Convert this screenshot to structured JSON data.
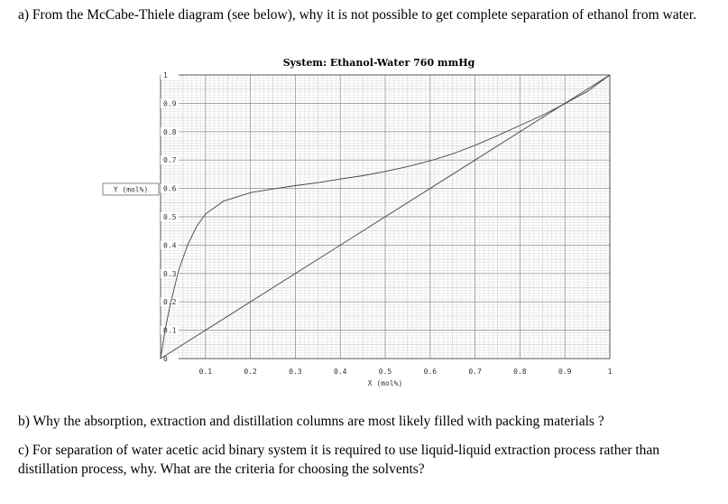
{
  "questions": {
    "a": "a) From the McCabe-Thiele diagram (see below), why it is not possible to get complete separation of ethanol from water.",
    "b": "b) Why the absorption, extraction and distillation columns are most likely filled with packing materials ?",
    "c": "c) For separation of water acetic acid binary system it is required to use liquid-liquid extraction process rather than distillation process, why.  What are the criteria for choosing the solvents?"
  },
  "chart_data": {
    "type": "line",
    "title": "System: Ethanol-Water 760 mmHg",
    "xlabel": "X (mol%)",
    "ylabel": "Y (mol%)",
    "xlim": [
      0,
      1
    ],
    "ylim": [
      0,
      1
    ],
    "grid": true,
    "x_ticks": [
      "0.1",
      "0.2",
      "0.3",
      "0.4",
      "0.5",
      "0.6",
      "0.7",
      "0.8",
      "0.9",
      "1"
    ],
    "y_ticks": [
      "0",
      "0.1",
      "0.2",
      "0.3",
      "0.4",
      "0.5",
      "0.6",
      "0.7",
      "0.8",
      "0.9",
      "1"
    ],
    "series": [
      {
        "x": [
          0,
          1
        ],
        "y": [
          0,
          1
        ]
      },
      {
        "x": [
          0,
          0.01,
          0.02,
          0.04,
          0.06,
          0.08,
          0.1,
          0.14,
          0.2,
          0.25,
          0.3,
          0.35,
          0.4,
          0.45,
          0.5,
          0.55,
          0.6,
          0.65,
          0.7,
          0.75,
          0.8,
          0.85,
          0.894,
          0.95,
          1
        ],
        "y": [
          0,
          0.1,
          0.18,
          0.31,
          0.4,
          0.465,
          0.51,
          0.555,
          0.585,
          0.598,
          0.61,
          0.62,
          0.633,
          0.645,
          0.66,
          0.677,
          0.697,
          0.722,
          0.752,
          0.786,
          0.822,
          0.858,
          0.894,
          0.942,
          1
        ]
      }
    ]
  }
}
